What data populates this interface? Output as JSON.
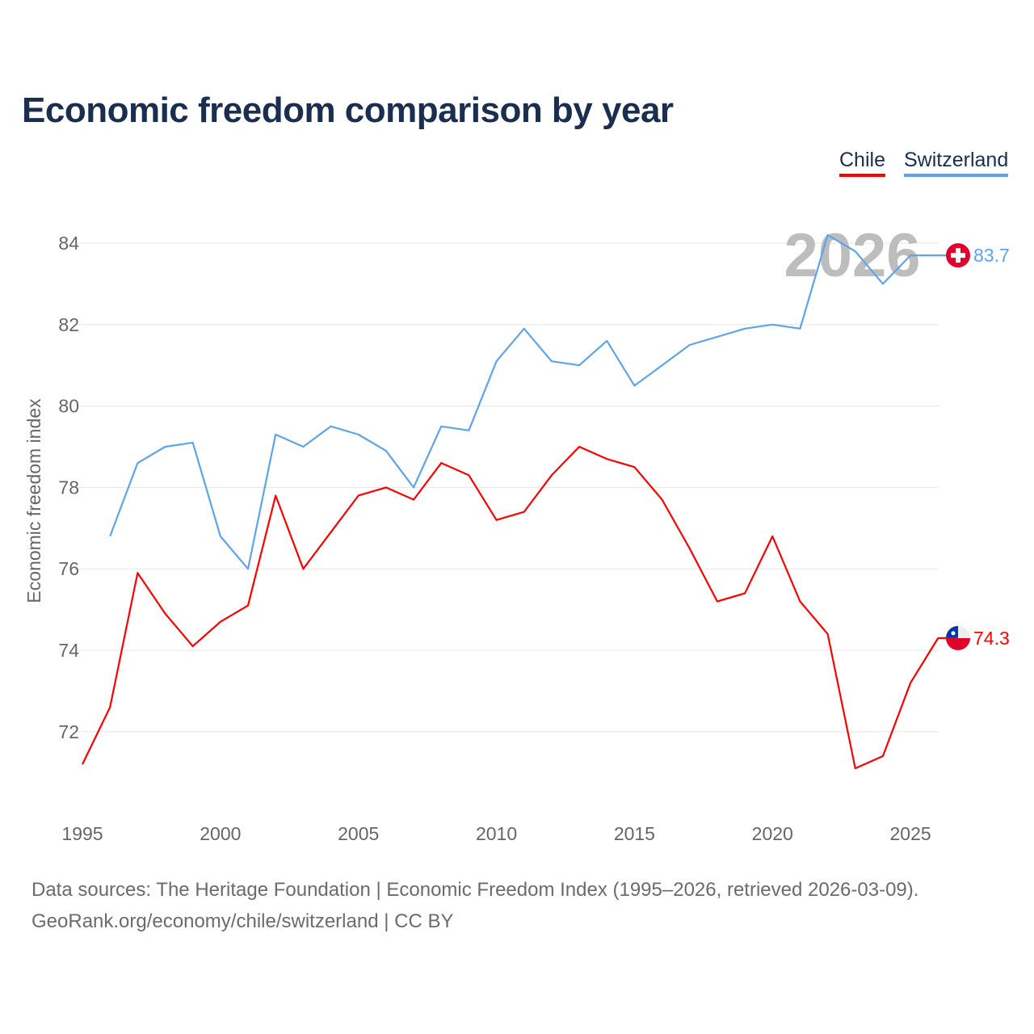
{
  "chart_data": {
    "type": "line",
    "title": "Economic freedom comparison by year",
    "xlabel": "",
    "ylabel": "Economic freedom index",
    "xlim": [
      1995,
      2026
    ],
    "ylim": [
      70.5,
      85
    ],
    "x_ticks": [
      "1995",
      "2000",
      "2005",
      "2010",
      "2015",
      "2020",
      "2025"
    ],
    "y_ticks": [
      "72",
      "74",
      "76",
      "78",
      "80",
      "82",
      "84"
    ],
    "grid": true,
    "legend_position": "top-right",
    "watermark_year": "2026",
    "series": [
      {
        "name": "Chile",
        "color": "#ff0000",
        "end_label": "74.3",
        "flag": "chile-flag",
        "x": [
          1995,
          1996,
          1997,
          1998,
          1999,
          2000,
          2001,
          2002,
          2003,
          2004,
          2005,
          2006,
          2007,
          2008,
          2009,
          2010,
          2011,
          2012,
          2013,
          2014,
          2015,
          2016,
          2017,
          2018,
          2019,
          2020,
          2021,
          2022,
          2023,
          2024,
          2025,
          2026
        ],
        "values": [
          71.2,
          72.6,
          75.9,
          74.9,
          74.1,
          74.7,
          75.1,
          77.8,
          76.0,
          76.9,
          77.8,
          78.0,
          77.7,
          78.6,
          78.3,
          77.2,
          77.4,
          78.3,
          79.0,
          78.7,
          78.5,
          77.7,
          76.5,
          75.2,
          75.4,
          76.8,
          75.2,
          74.4,
          71.1,
          71.4,
          73.2,
          74.3
        ]
      },
      {
        "name": "Switzerland",
        "color": "#5ea4ec",
        "end_label": "83.7",
        "flag": "switzerland-flag",
        "x": [
          1996,
          1997,
          1998,
          1999,
          2000,
          2001,
          2002,
          2003,
          2004,
          2005,
          2006,
          2007,
          2008,
          2009,
          2010,
          2011,
          2012,
          2013,
          2014,
          2015,
          2016,
          2017,
          2018,
          2019,
          2020,
          2021,
          2022,
          2023,
          2024,
          2025,
          2026
        ],
        "values": [
          76.8,
          78.6,
          79.0,
          79.1,
          76.8,
          76.0,
          79.3,
          79.0,
          79.5,
          79.3,
          78.9,
          78.0,
          79.5,
          79.4,
          81.1,
          81.9,
          81.1,
          81.0,
          81.6,
          80.5,
          81.0,
          81.5,
          81.7,
          81.9,
          82.0,
          81.9,
          84.2,
          83.8,
          83.0,
          83.7,
          83.7
        ]
      }
    ]
  },
  "legend": {
    "chile": "Chile",
    "switzerland": "Switzerland"
  },
  "footer": {
    "sources": "Data sources: The Heritage Foundation | Economic Freedom Index (1995–2026, retrieved 2026-03-09).",
    "credit": "GeoRank.org/economy/chile/switzerland | CC BY"
  }
}
